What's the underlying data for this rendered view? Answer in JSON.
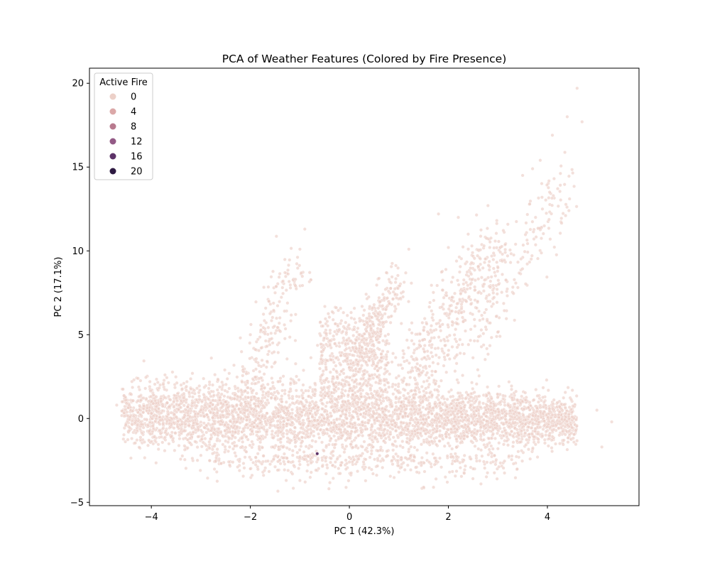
{
  "chart_data": {
    "type": "scatter",
    "title": "PCA of Weather Features (Colored by Fire Presence)",
    "xlabel": "PC 1 (42.3%)",
    "ylabel": "PC 2 (17.1%)",
    "xlim": [
      -5.25,
      5.85
    ],
    "ylim": [
      -5.2,
      20.9
    ],
    "xticks": [
      -4,
      -2,
      0,
      2,
      4
    ],
    "yticks": [
      -5,
      0,
      5,
      10,
      15,
      20
    ],
    "grid": false,
    "legend": {
      "title": "Active Fire",
      "placement": "top-left",
      "entries": [
        {
          "label": "0",
          "color": "#ecd0c8"
        },
        {
          "label": "4",
          "color": "#dba8a8"
        },
        {
          "label": "8",
          "color": "#b87a8e"
        },
        {
          "label": "12",
          "color": "#935a86"
        },
        {
          "label": "16",
          "color": "#5d3368"
        },
        {
          "label": "20",
          "color": "#2e1a42"
        }
      ]
    },
    "series": [
      {
        "name": "0",
        "color": "#ecd0c8",
        "description_points": [
          [
            -4.7,
            0.8
          ],
          [
            -4.5,
            0.9
          ],
          [
            -4.3,
            0.5
          ],
          [
            -4.0,
            0.3
          ],
          [
            -3.5,
            0.1
          ],
          [
            -3.0,
            0.5
          ],
          [
            -2.5,
            1.0
          ],
          [
            -2.0,
            0.8
          ],
          [
            -1.5,
            1.2
          ],
          [
            -1.0,
            0.6
          ],
          [
            -0.5,
            0.4
          ],
          [
            0.0,
            0.9
          ],
          [
            0.5,
            0.3
          ],
          [
            1.0,
            0.6
          ],
          [
            1.5,
            0.2
          ],
          [
            2.0,
            0.4
          ],
          [
            2.5,
            0.0
          ],
          [
            3.0,
            0.2
          ],
          [
            3.5,
            -0.3
          ],
          [
            4.0,
            -0.5
          ],
          [
            4.5,
            0.1
          ],
          [
            5.0,
            0.5
          ],
          [
            5.3,
            -0.2
          ],
          [
            -2.0,
            5.0
          ],
          [
            -1.5,
            7.5
          ],
          [
            -1.3,
            8.7
          ],
          [
            -1.0,
            10.1
          ],
          [
            -0.9,
            11.3
          ],
          [
            0.0,
            4.2
          ],
          [
            0.3,
            5.6
          ],
          [
            0.6,
            7.2
          ],
          [
            0.8,
            8.3
          ],
          [
            1.2,
            10.1
          ],
          [
            1.8,
            12.2
          ],
          [
            2.0,
            10.2
          ],
          [
            2.2,
            12.0
          ],
          [
            2.4,
            11.0
          ],
          [
            2.6,
            7.5
          ],
          [
            2.8,
            12.7
          ],
          [
            3.5,
            14.5
          ],
          [
            3.7,
            14.9
          ],
          [
            3.9,
            12.5
          ],
          [
            4.1,
            16.9
          ],
          [
            4.4,
            18.0
          ],
          [
            4.6,
            19.7
          ],
          [
            4.7,
            17.7
          ],
          [
            3.0,
            9.0
          ],
          [
            -3.0,
            -2.2
          ],
          [
            -2.0,
            -3.0
          ],
          [
            -1.0,
            -3.7
          ],
          [
            0.0,
            -2.6
          ],
          [
            1.0,
            -3.2
          ],
          [
            1.5,
            -4.1
          ],
          [
            2.5,
            -3.0
          ],
          [
            3.0,
            -1.8
          ],
          [
            5.1,
            -1.7
          ],
          [
            3.8,
            -2.3
          ]
        ]
      },
      {
        "name": "16",
        "color": "#5d3368",
        "description_points": [
          [
            -0.65,
            -2.1
          ]
        ]
      }
    ]
  }
}
